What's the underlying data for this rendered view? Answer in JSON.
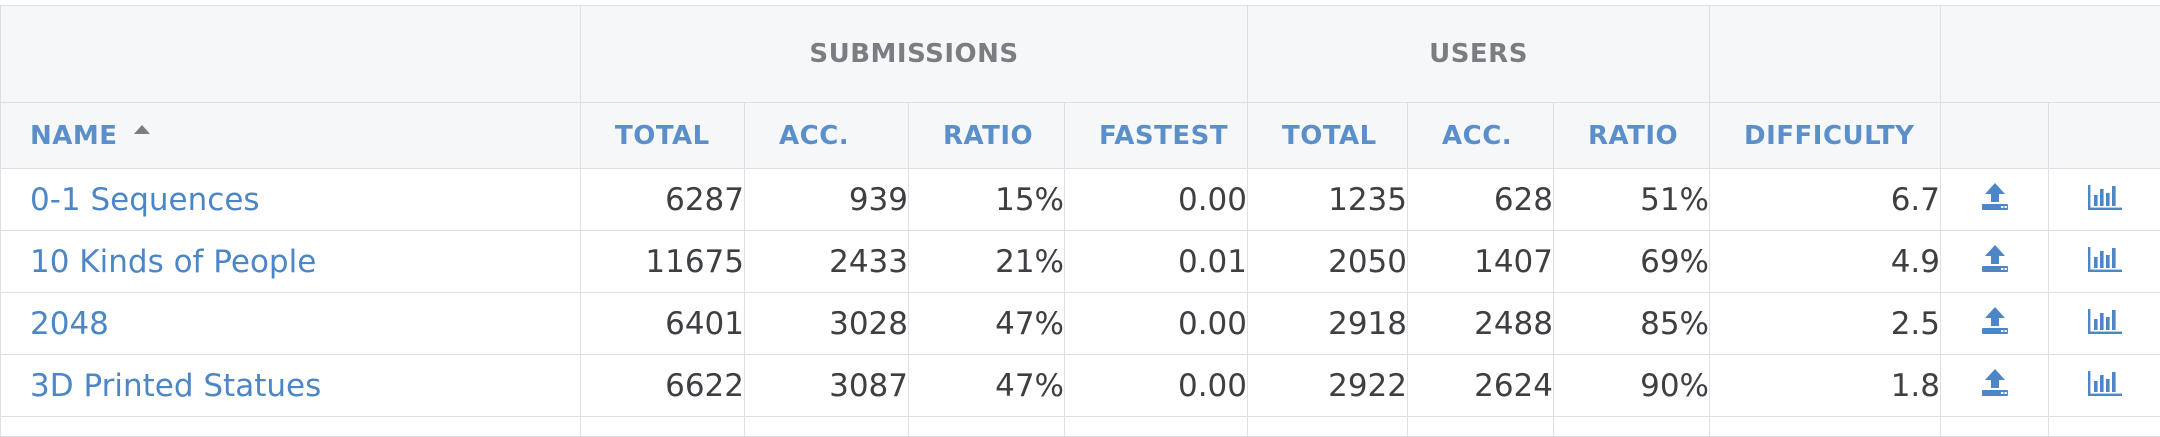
{
  "table": {
    "group_headers": {
      "submissions": "SUBMISSIONS",
      "users": "USERS"
    },
    "columns": {
      "name": "NAME",
      "sub_total": "TOTAL",
      "sub_acc": "ACC.",
      "sub_ratio": "RATIO",
      "sub_fastest": "FASTEST",
      "user_total": "TOTAL",
      "user_acc": "ACC.",
      "user_ratio": "RATIO",
      "difficulty": "DIFFICULTY"
    },
    "sort": {
      "column": "name",
      "direction": "ascending",
      "icon": "sort-up-caret-icon"
    },
    "row_icons": {
      "submit": "upload-icon",
      "stats": "bar-chart-icon"
    },
    "rows": [
      {
        "name": "0-1 Sequences",
        "sub_total": "6287",
        "sub_acc": "939",
        "sub_ratio": "15%",
        "sub_fastest": "0.00",
        "user_total": "1235",
        "user_acc": "628",
        "user_ratio": "51%",
        "difficulty": "6.7"
      },
      {
        "name": "10 Kinds of People",
        "sub_total": "11675",
        "sub_acc": "2433",
        "sub_ratio": "21%",
        "sub_fastest": "0.01",
        "user_total": "2050",
        "user_acc": "1407",
        "user_ratio": "69%",
        "difficulty": "4.9"
      },
      {
        "name": "2048",
        "sub_total": "6401",
        "sub_acc": "3028",
        "sub_ratio": "47%",
        "sub_fastest": "0.00",
        "user_total": "2918",
        "user_acc": "2488",
        "user_ratio": "85%",
        "difficulty": "2.5"
      },
      {
        "name": "3D Printed Statues",
        "sub_total": "6622",
        "sub_acc": "3087",
        "sub_ratio": "47%",
        "sub_fastest": "0.00",
        "user_total": "2922",
        "user_acc": "2624",
        "user_ratio": "90%",
        "difficulty": "1.8"
      }
    ]
  },
  "colors": {
    "link": "#4d86c7",
    "header_bg": "#f6f7f9",
    "group_header_text": "#7a7d82",
    "column_header_text": "#5b8fc9",
    "border": "#dcdfe3",
    "body_text": "#3d3f42"
  }
}
